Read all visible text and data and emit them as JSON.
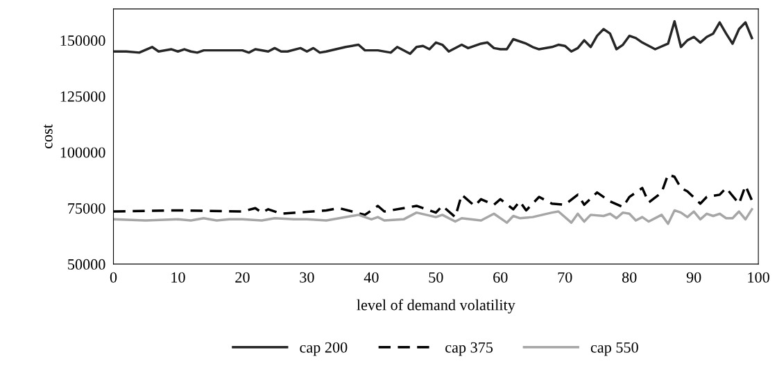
{
  "chart_data": {
    "type": "line",
    "xlabel": "level of demand volatility",
    "ylabel": "cost",
    "xlim": [
      0,
      100
    ],
    "xticks": [
      0,
      10,
      20,
      30,
      40,
      50,
      60,
      70,
      80,
      90,
      100
    ],
    "ylim": [
      50000,
      164000
    ],
    "yticks": [
      50000,
      75000,
      100000,
      125000,
      150000
    ],
    "grid": false,
    "legend": "bottom",
    "marker": "none",
    "series": [
      {
        "name": "cap 200",
        "color": "#262626",
        "line_style": "solid",
        "x": [
          0,
          2,
          4,
          6,
          7,
          9,
          10,
          11,
          12,
          13,
          14,
          15,
          20,
          21,
          22,
          24,
          25,
          26,
          27,
          29,
          30,
          31,
          32,
          33,
          36,
          38,
          39,
          41,
          43,
          44,
          46,
          47,
          48,
          49,
          50,
          51,
          52,
          54,
          55,
          57,
          58,
          59,
          60,
          61,
          62,
          64,
          65,
          66,
          68,
          69,
          70,
          71,
          72,
          73,
          74,
          75,
          76,
          77,
          78,
          79,
          80,
          81,
          82,
          84,
          86,
          87,
          88,
          89,
          90,
          91,
          92,
          93,
          94,
          95,
          96,
          97,
          98,
          99
        ],
        "values": [
          145000,
          145000,
          144500,
          147000,
          145000,
          146000,
          145000,
          146000,
          145000,
          144500,
          145500,
          145500,
          145500,
          144500,
          146000,
          145000,
          146500,
          145000,
          145000,
          146500,
          145000,
          146500,
          144500,
          145000,
          147000,
          148000,
          145500,
          145500,
          144500,
          147000,
          144000,
          147000,
          147500,
          146000,
          149000,
          148000,
          145000,
          148000,
          146500,
          148500,
          149000,
          146500,
          146000,
          146000,
          150500,
          148500,
          147000,
          146000,
          147000,
          148000,
          147500,
          145000,
          146500,
          150000,
          147000,
          152000,
          155000,
          153000,
          146000,
          148000,
          152000,
          151000,
          149000,
          146000,
          148500,
          158500,
          147000,
          150000,
          151500,
          149000,
          151500,
          153000,
          158000,
          153000,
          148500,
          155000,
          158000,
          151000
        ]
      },
      {
        "name": "cap 375",
        "color": "#000000",
        "line_style": "dashed",
        "x": [
          0,
          10,
          20,
          22,
          23,
          24,
          26,
          33,
          35,
          37,
          39,
          41,
          42,
          45,
          47,
          49,
          50,
          51,
          53,
          54,
          56,
          57,
          59,
          60,
          62,
          63,
          64,
          66,
          68,
          70,
          72,
          73,
          75,
          77,
          79,
          80,
          82,
          83,
          85,
          86,
          87,
          88,
          89,
          91,
          92,
          94,
          95,
          97,
          98,
          99
        ],
        "values": [
          73500,
          74000,
          73500,
          75000,
          73000,
          74500,
          72500,
          74000,
          75000,
          73500,
          72000,
          76000,
          73500,
          75000,
          76000,
          74000,
          73000,
          76000,
          71000,
          81000,
          76000,
          79000,
          76500,
          79000,
          74500,
          78000,
          74000,
          80000,
          77000,
          76500,
          81000,
          76500,
          82000,
          78000,
          75500,
          80000,
          84000,
          77500,
          82000,
          90000,
          89000,
          84000,
          82500,
          77000,
          80000,
          81000,
          84000,
          77000,
          85000,
          78500
        ]
      },
      {
        "name": "cap 550",
        "color": "#a6a6a6",
        "line_style": "solid",
        "x": [
          0,
          5,
          10,
          12,
          14,
          16,
          18,
          20,
          23,
          25,
          28,
          30,
          33,
          35,
          38,
          40,
          41,
          42,
          45,
          47,
          50,
          51,
          53,
          54,
          57,
          59,
          61,
          62,
          63,
          65,
          68,
          69,
          71,
          72,
          73,
          74,
          76,
          77,
          78,
          79,
          80,
          81,
          82,
          83,
          85,
          86,
          87,
          88,
          89,
          90,
          91,
          92,
          93,
          94,
          95,
          96,
          97,
          98,
          99
        ],
        "values": [
          70000,
          69500,
          70000,
          69500,
          70500,
          69500,
          70000,
          70000,
          69500,
          70500,
          70000,
          70000,
          69500,
          70500,
          72000,
          70000,
          71000,
          69500,
          70000,
          73000,
          71000,
          72000,
          69000,
          70500,
          69500,
          72500,
          68500,
          71500,
          70500,
          71000,
          73000,
          73500,
          68500,
          72500,
          69000,
          72000,
          71500,
          72500,
          70500,
          73000,
          72500,
          69500,
          71000,
          69000,
          72000,
          68000,
          74000,
          73000,
          71000,
          73500,
          70000,
          72500,
          71500,
          72500,
          70500,
          70500,
          73500,
          70000,
          74500
        ]
      }
    ]
  }
}
